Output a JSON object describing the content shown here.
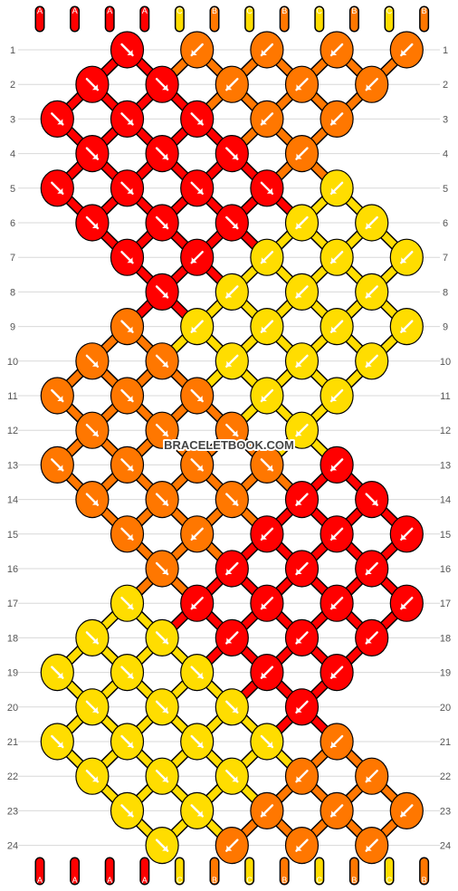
{
  "colors": {
    "A": "#ff0000",
    "B": "#ff7700",
    "C": "#ffdd00"
  },
  "strand_letters_top": [
    "A",
    "A",
    "A",
    "A",
    "C",
    "B",
    "C",
    "B",
    "C",
    "B",
    "C",
    "B"
  ],
  "strand_letters_bottom": [
    "A",
    "A",
    "A",
    "A",
    "C",
    "B",
    "C",
    "B",
    "C",
    "B",
    "C",
    "B"
  ],
  "row_labels": [
    "1",
    "2",
    "3",
    "4",
    "5",
    "6",
    "7",
    "8",
    "9",
    "10",
    "11",
    "12",
    "13",
    "14",
    "15",
    "16",
    "17",
    "18",
    "19",
    "20",
    "21",
    "22",
    "23",
    "24"
  ],
  "watermark": "BRACELETBOOK.COM",
  "knots": [
    {
      "row": 1,
      "col": 3,
      "color": "A",
      "dir": "se"
    },
    {
      "row": 1,
      "col": 5,
      "color": "B",
      "dir": "sw"
    },
    {
      "row": 1,
      "col": 7,
      "color": "B",
      "dir": "sw"
    },
    {
      "row": 1,
      "col": 9,
      "color": "B",
      "dir": "sw"
    },
    {
      "row": 1,
      "col": 11,
      "color": "B",
      "dir": "sw"
    },
    {
      "row": 2,
      "col": 2,
      "color": "A",
      "dir": "se"
    },
    {
      "row": 2,
      "col": 4,
      "color": "A",
      "dir": "se"
    },
    {
      "row": 2,
      "col": 6,
      "color": "B",
      "dir": "sw"
    },
    {
      "row": 2,
      "col": 8,
      "color": "B",
      "dir": "sw"
    },
    {
      "row": 2,
      "col": 10,
      "color": "B",
      "dir": "sw"
    },
    {
      "row": 3,
      "col": 1,
      "color": "A",
      "dir": "se"
    },
    {
      "row": 3,
      "col": 3,
      "color": "A",
      "dir": "se"
    },
    {
      "row": 3,
      "col": 5,
      "color": "A",
      "dir": "se"
    },
    {
      "row": 3,
      "col": 7,
      "color": "B",
      "dir": "sw"
    },
    {
      "row": 3,
      "col": 9,
      "color": "B",
      "dir": "sw"
    },
    {
      "row": 4,
      "col": 2,
      "color": "A",
      "dir": "se"
    },
    {
      "row": 4,
      "col": 4,
      "color": "A",
      "dir": "se"
    },
    {
      "row": 4,
      "col": 6,
      "color": "A",
      "dir": "se"
    },
    {
      "row": 4,
      "col": 8,
      "color": "B",
      "dir": "sw"
    },
    {
      "row": 5,
      "col": 1,
      "color": "A",
      "dir": "se"
    },
    {
      "row": 5,
      "col": 3,
      "color": "A",
      "dir": "se"
    },
    {
      "row": 5,
      "col": 5,
      "color": "A",
      "dir": "se"
    },
    {
      "row": 5,
      "col": 7,
      "color": "A",
      "dir": "se"
    },
    {
      "row": 5,
      "col": 9,
      "color": "C",
      "dir": "sw"
    },
    {
      "row": 6,
      "col": 2,
      "color": "A",
      "dir": "se"
    },
    {
      "row": 6,
      "col": 4,
      "color": "A",
      "dir": "se"
    },
    {
      "row": 6,
      "col": 6,
      "color": "A",
      "dir": "se"
    },
    {
      "row": 6,
      "col": 8,
      "color": "C",
      "dir": "sw"
    },
    {
      "row": 6,
      "col": 10,
      "color": "C",
      "dir": "sw"
    },
    {
      "row": 7,
      "col": 3,
      "color": "A",
      "dir": "se"
    },
    {
      "row": 7,
      "col": 5,
      "color": "A",
      "dir": "sw"
    },
    {
      "row": 7,
      "col": 7,
      "color": "C",
      "dir": "sw"
    },
    {
      "row": 7,
      "col": 9,
      "color": "C",
      "dir": "sw"
    },
    {
      "row": 7,
      "col": 11,
      "color": "C",
      "dir": "sw"
    },
    {
      "row": 8,
      "col": 4,
      "color": "A",
      "dir": "se"
    },
    {
      "row": 8,
      "col": 6,
      "color": "C",
      "dir": "sw"
    },
    {
      "row": 8,
      "col": 8,
      "color": "C",
      "dir": "sw"
    },
    {
      "row": 8,
      "col": 10,
      "color": "C",
      "dir": "sw"
    },
    {
      "row": 9,
      "col": 3,
      "color": "B",
      "dir": "se"
    },
    {
      "row": 9,
      "col": 5,
      "color": "C",
      "dir": "sw"
    },
    {
      "row": 9,
      "col": 7,
      "color": "C",
      "dir": "sw"
    },
    {
      "row": 9,
      "col": 9,
      "color": "C",
      "dir": "sw"
    },
    {
      "row": 9,
      "col": 11,
      "color": "C",
      "dir": "sw"
    },
    {
      "row": 10,
      "col": 2,
      "color": "B",
      "dir": "se"
    },
    {
      "row": 10,
      "col": 4,
      "color": "B",
      "dir": "se"
    },
    {
      "row": 10,
      "col": 6,
      "color": "C",
      "dir": "sw"
    },
    {
      "row": 10,
      "col": 8,
      "color": "C",
      "dir": "sw"
    },
    {
      "row": 10,
      "col": 10,
      "color": "C",
      "dir": "sw"
    },
    {
      "row": 11,
      "col": 1,
      "color": "B",
      "dir": "se"
    },
    {
      "row": 11,
      "col": 3,
      "color": "B",
      "dir": "se"
    },
    {
      "row": 11,
      "col": 5,
      "color": "B",
      "dir": "se"
    },
    {
      "row": 11,
      "col": 7,
      "color": "C",
      "dir": "sw"
    },
    {
      "row": 11,
      "col": 9,
      "color": "C",
      "dir": "sw"
    },
    {
      "row": 12,
      "col": 2,
      "color": "B",
      "dir": "se"
    },
    {
      "row": 12,
      "col": 4,
      "color": "B",
      "dir": "se"
    },
    {
      "row": 12,
      "col": 6,
      "color": "B",
      "dir": "se"
    },
    {
      "row": 12,
      "col": 8,
      "color": "C",
      "dir": "sw"
    },
    {
      "row": 13,
      "col": 1,
      "color": "B",
      "dir": "se"
    },
    {
      "row": 13,
      "col": 3,
      "color": "B",
      "dir": "se"
    },
    {
      "row": 13,
      "col": 5,
      "color": "B",
      "dir": "se"
    },
    {
      "row": 13,
      "col": 7,
      "color": "B",
      "dir": "se"
    },
    {
      "row": 13,
      "col": 9,
      "color": "A",
      "dir": "sw"
    },
    {
      "row": 14,
      "col": 2,
      "color": "B",
      "dir": "se"
    },
    {
      "row": 14,
      "col": 4,
      "color": "B",
      "dir": "se"
    },
    {
      "row": 14,
      "col": 6,
      "color": "B",
      "dir": "se"
    },
    {
      "row": 14,
      "col": 8,
      "color": "A",
      "dir": "sw"
    },
    {
      "row": 14,
      "col": 10,
      "color": "A",
      "dir": "se"
    },
    {
      "row": 15,
      "col": 3,
      "color": "B",
      "dir": "se"
    },
    {
      "row": 15,
      "col": 5,
      "color": "B",
      "dir": "sw"
    },
    {
      "row": 15,
      "col": 7,
      "color": "A",
      "dir": "sw"
    },
    {
      "row": 15,
      "col": 9,
      "color": "A",
      "dir": "sw"
    },
    {
      "row": 15,
      "col": 11,
      "color": "A",
      "dir": "sw"
    },
    {
      "row": 16,
      "col": 4,
      "color": "B",
      "dir": "se"
    },
    {
      "row": 16,
      "col": 6,
      "color": "A",
      "dir": "sw"
    },
    {
      "row": 16,
      "col": 8,
      "color": "A",
      "dir": "sw"
    },
    {
      "row": 16,
      "col": 10,
      "color": "A",
      "dir": "sw"
    },
    {
      "row": 17,
      "col": 3,
      "color": "C",
      "dir": "se"
    },
    {
      "row": 17,
      "col": 5,
      "color": "A",
      "dir": "sw"
    },
    {
      "row": 17,
      "col": 7,
      "color": "A",
      "dir": "sw"
    },
    {
      "row": 17,
      "col": 9,
      "color": "A",
      "dir": "sw"
    },
    {
      "row": 17,
      "col": 11,
      "color": "A",
      "dir": "sw"
    },
    {
      "row": 18,
      "col": 2,
      "color": "C",
      "dir": "se"
    },
    {
      "row": 18,
      "col": 4,
      "color": "C",
      "dir": "se"
    },
    {
      "row": 18,
      "col": 6,
      "color": "A",
      "dir": "sw"
    },
    {
      "row": 18,
      "col": 8,
      "color": "A",
      "dir": "sw"
    },
    {
      "row": 18,
      "col": 10,
      "color": "A",
      "dir": "sw"
    },
    {
      "row": 19,
      "col": 1,
      "color": "C",
      "dir": "se"
    },
    {
      "row": 19,
      "col": 3,
      "color": "C",
      "dir": "se"
    },
    {
      "row": 19,
      "col": 5,
      "color": "C",
      "dir": "se"
    },
    {
      "row": 19,
      "col": 7,
      "color": "A",
      "dir": "sw"
    },
    {
      "row": 19,
      "col": 9,
      "color": "A",
      "dir": "sw"
    },
    {
      "row": 20,
      "col": 2,
      "color": "C",
      "dir": "se"
    },
    {
      "row": 20,
      "col": 4,
      "color": "C",
      "dir": "se"
    },
    {
      "row": 20,
      "col": 6,
      "color": "C",
      "dir": "se"
    },
    {
      "row": 20,
      "col": 8,
      "color": "A",
      "dir": "sw"
    },
    {
      "row": 21,
      "col": 1,
      "color": "C",
      "dir": "se"
    },
    {
      "row": 21,
      "col": 3,
      "color": "C",
      "dir": "se"
    },
    {
      "row": 21,
      "col": 5,
      "color": "C",
      "dir": "se"
    },
    {
      "row": 21,
      "col": 7,
      "color": "C",
      "dir": "se"
    },
    {
      "row": 21,
      "col": 9,
      "color": "B",
      "dir": "sw"
    },
    {
      "row": 22,
      "col": 2,
      "color": "C",
      "dir": "se"
    },
    {
      "row": 22,
      "col": 4,
      "color": "C",
      "dir": "se"
    },
    {
      "row": 22,
      "col": 6,
      "color": "C",
      "dir": "se"
    },
    {
      "row": 22,
      "col": 8,
      "color": "B",
      "dir": "sw"
    },
    {
      "row": 22,
      "col": 10,
      "color": "B",
      "dir": "sw"
    },
    {
      "row": 23,
      "col": 3,
      "color": "C",
      "dir": "se"
    },
    {
      "row": 23,
      "col": 5,
      "color": "C",
      "dir": "se"
    },
    {
      "row": 23,
      "col": 7,
      "color": "B",
      "dir": "sw"
    },
    {
      "row": 23,
      "col": 9,
      "color": "B",
      "dir": "sw"
    },
    {
      "row": 23,
      "col": 11,
      "color": "B",
      "dir": "sw"
    },
    {
      "row": 24,
      "col": 4,
      "color": "C",
      "dir": "se"
    },
    {
      "row": 24,
      "col": 6,
      "color": "B",
      "dir": "sw"
    },
    {
      "row": 24,
      "col": 8,
      "color": "B",
      "dir": "sw"
    },
    {
      "row": 24,
      "col": 10,
      "color": "B",
      "dir": "sw"
    }
  ]
}
